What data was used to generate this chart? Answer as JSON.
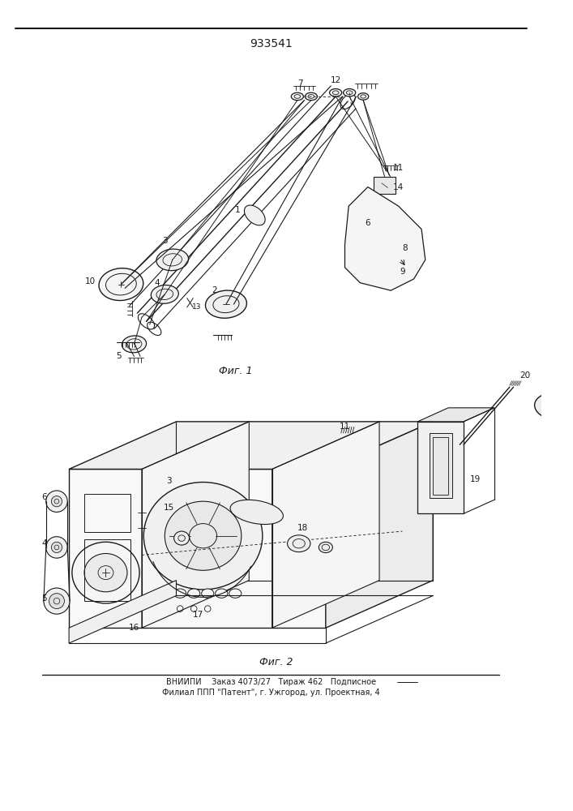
{
  "title_number": "933541",
  "fig1_label": "Фиг. 1",
  "fig2_label": "Фиг. 2",
  "footer_line1": "ВНИИПИ    Заказ 4073/27   Тираж 462   Подписное",
  "footer_line2": "Филиал ППП \"Патент\", г. Ужгород, ул. Проектная, 4",
  "bg_color": "#ffffff",
  "line_color": "#1a1a1a"
}
